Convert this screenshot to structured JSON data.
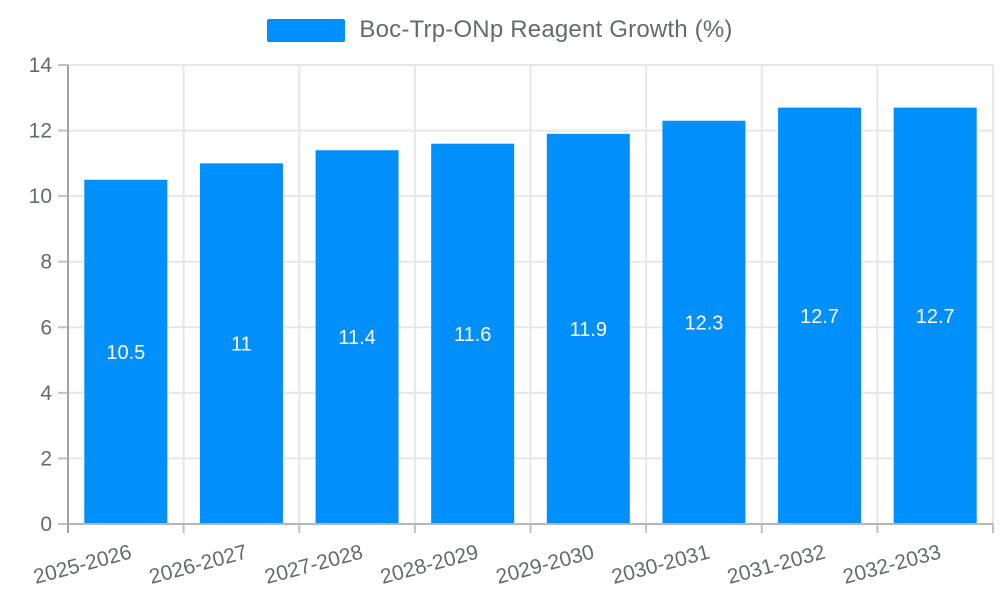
{
  "chart_data": {
    "type": "bar",
    "title": "Boc-Trp-ONp Reagent Growth (%)",
    "categories": [
      "2025-2026",
      "2026-2027",
      "2027-2028",
      "2028-2029",
      "2029-2030",
      "2030-2031",
      "2031-2032",
      "2032-2033"
    ],
    "values": [
      10.5,
      11,
      11.4,
      11.6,
      11.9,
      12.3,
      12.7,
      12.7
    ],
    "value_labels": [
      "10.5",
      "11",
      "11.4",
      "11.6",
      "11.9",
      "12.3",
      "12.7",
      "12.7"
    ],
    "xlabel": "",
    "ylabel": "",
    "ylim": [
      0,
      14
    ],
    "yticks": [
      0,
      2,
      4,
      6,
      8,
      10,
      12,
      14
    ],
    "grid": true,
    "legend_position": "top",
    "colors": {
      "bar": "#008FFB",
      "grid": "#e7e7e7",
      "axis_line": "#a3a3a3",
      "tick": "#c2c2c2",
      "baseline": "#b6b6b6",
      "label_text": "#666a6e",
      "value_text": "#ffffff"
    }
  }
}
